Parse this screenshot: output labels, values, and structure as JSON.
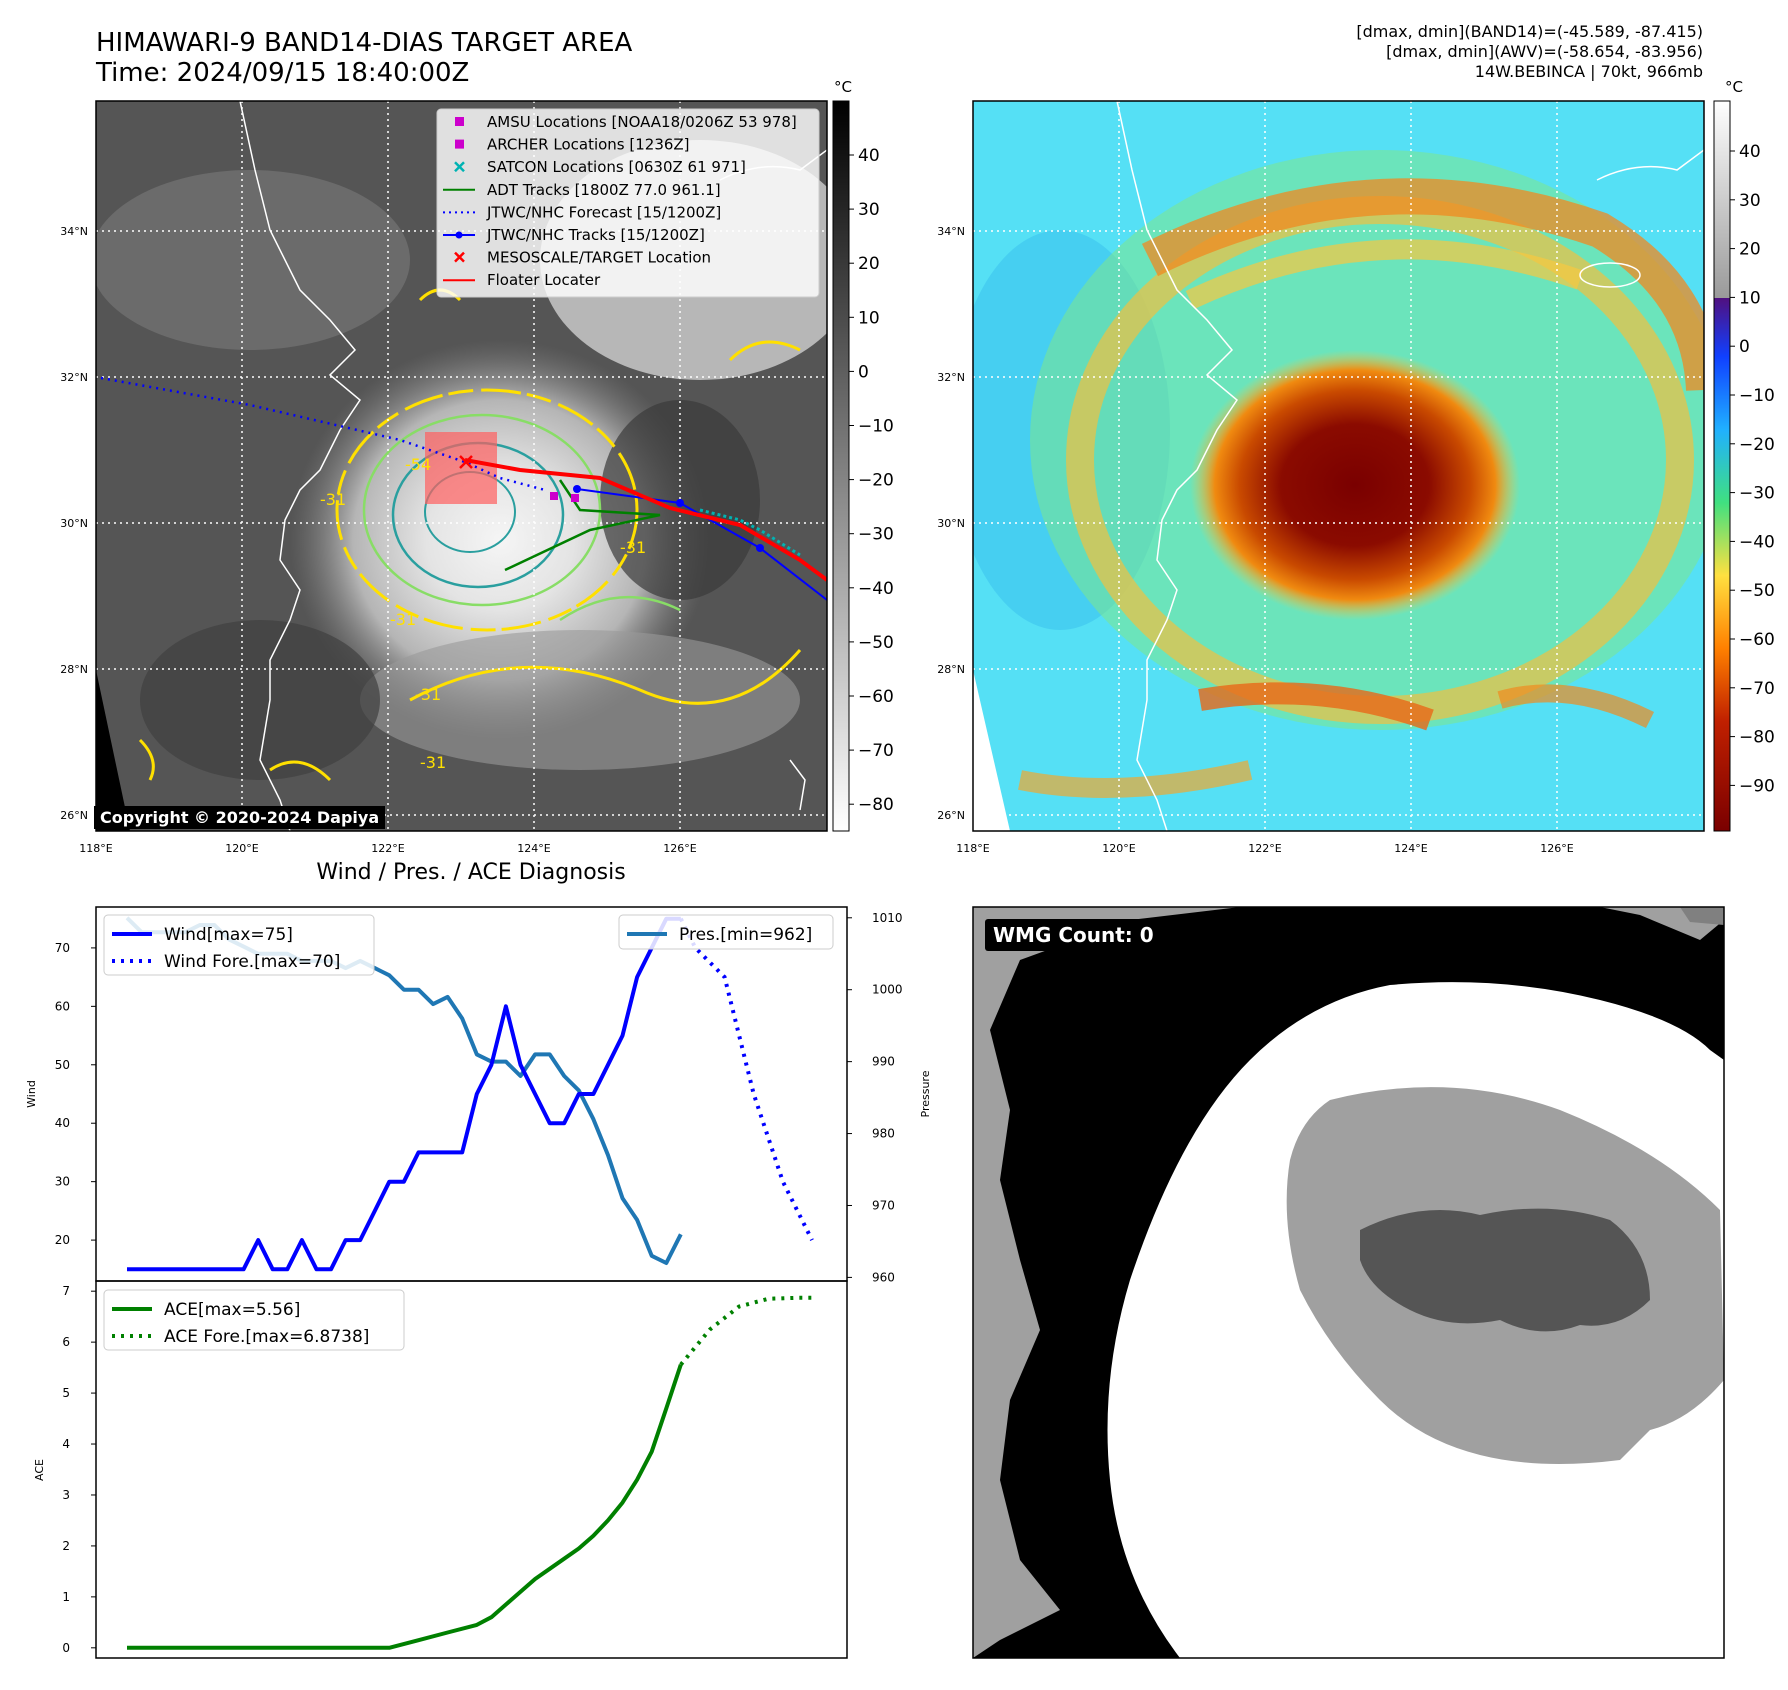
{
  "header": {
    "title_line1": "HIMAWARI-9 BAND14-DIAS TARGET AREA",
    "title_line2": "Time: 2024/09/15 18:40:00Z",
    "stats_line1": "[dmax, dmin](BAND14)=(-45.589, -87.415)",
    "stats_line2": "[dmax, dmin](AWV)=(-58.654, -83.956)",
    "stats_line3": "14W.BEBINCA | 70kt, 966mb"
  },
  "copyright": "Copyright © 2020-2024 Dapiya",
  "diag_title": "Wind / Pres. / ACE Diagnosis",
  "wmg_label": "WMG Count: 0",
  "colors": {
    "wind": "#0000ff",
    "pres": "#1f77b4",
    "ace": "#008000",
    "track_red": "#ff0000",
    "adt_green": "#008000",
    "amsu": "#cc00cc",
    "satcon": "#00b3b3",
    "contour_yellow": "#ffe000",
    "contour_green": "#88dd66",
    "contour_teal": "#2a9f9f"
  },
  "maps": {
    "lon_ticks": [
      "118°E",
      "120°E",
      "122°E",
      "124°E",
      "126°E"
    ],
    "lat_ticks": [
      "26°N",
      "28°N",
      "30°N",
      "32°N",
      "34°N"
    ],
    "contour_labels": [
      "-31",
      "-54",
      "-31",
      "-31",
      "-31",
      "-31"
    ],
    "left_cbar": {
      "unit": "°C",
      "ticks": [
        "40",
        "30",
        "20",
        "10",
        "0",
        "−10",
        "−20",
        "−30",
        "−40",
        "−50",
        "−60",
        "−70",
        "−80"
      ]
    },
    "right_cbar": {
      "unit": "°C",
      "ticks": [
        "40",
        "30",
        "20",
        "10",
        "0",
        "−10",
        "−20",
        "−30",
        "−40",
        "−50",
        "−60",
        "−70",
        "−80",
        "−90"
      ]
    },
    "legend": [
      {
        "label": "AMSU Locations [NOAA18/0206Z 53 978]",
        "kind": "square",
        "color": "#cc00cc"
      },
      {
        "label": "ARCHER Locations [1236Z]",
        "kind": "square",
        "color": "#cc00cc"
      },
      {
        "label": "SATCON Locations [0630Z 61 971]",
        "kind": "x",
        "color": "#00b3b3"
      },
      {
        "label": "ADT Tracks [1800Z 77.0 961.1]",
        "kind": "line",
        "color": "#008000"
      },
      {
        "label": "JTWC/NHC Forecast [15/1200Z]",
        "kind": "dotted",
        "color": "#0000ff"
      },
      {
        "label": "JTWC/NHC Tracks [15/1200Z]",
        "kind": "linedot",
        "color": "#0000ff"
      },
      {
        "label": "MESOSCALE/TARGET Location",
        "kind": "x",
        "color": "#ff0000"
      },
      {
        "label": "Floater Locater",
        "kind": "line",
        "color": "#ff0000"
      }
    ]
  },
  "chart_data": [
    {
      "type": "line",
      "title": "Wind / Pres. / ACE Diagnosis",
      "ylabel": "Wind",
      "ylim": [
        13,
        77
      ],
      "yticks": [
        20,
        30,
        40,
        50,
        60,
        70
      ],
      "y2label": "Pressure",
      "y2lim": [
        959.5,
        1011.5
      ],
      "y2ticks": [
        960,
        970,
        980,
        990,
        1000,
        1010
      ],
      "series": [
        {
          "name": "Wind[max=75]",
          "axis": "left",
          "style": "solid",
          "x": [
            0,
            1,
            2,
            3,
            4,
            5,
            6,
            7,
            8,
            9,
            10,
            11,
            12,
            13,
            14,
            15,
            16,
            17,
            18,
            19,
            20,
            21,
            22,
            23,
            24,
            25,
            26,
            27,
            28,
            29,
            30,
            31,
            32,
            33,
            34,
            35,
            36,
            37,
            38
          ],
          "values": [
            15,
            15,
            15,
            15,
            15,
            15,
            15,
            15,
            15,
            20,
            15,
            15,
            20,
            15,
            15,
            20,
            20,
            25,
            30,
            30,
            35,
            35,
            35,
            35,
            45,
            50,
            60,
            50,
            45,
            40,
            40,
            45,
            45,
            50,
            55,
            65,
            70,
            75,
            75
          ]
        },
        {
          "name": "Wind Fore.[max=70]",
          "axis": "left",
          "style": "dotted",
          "x": [
            38,
            39,
            41,
            43,
            45,
            47
          ],
          "values": [
            75,
            70,
            65,
            45,
            30,
            20
          ]
        },
        {
          "name": "Pres.[min=962]",
          "axis": "right",
          "style": "solid",
          "x": [
            0,
            1,
            2,
            3,
            4,
            5,
            6,
            7,
            8,
            9,
            10,
            11,
            12,
            13,
            14,
            15,
            16,
            17,
            18,
            19,
            20,
            21,
            22,
            23,
            24,
            25,
            26,
            27,
            28,
            29,
            30,
            31,
            32,
            33,
            34,
            35,
            36,
            37,
            38
          ],
          "values": [
            1010,
            1008,
            1008,
            1008,
            1008,
            1009,
            1009,
            1007,
            1006,
            1005,
            1005,
            1005,
            1004,
            1004,
            1004,
            1003,
            1004,
            1003,
            1002,
            1000,
            1000,
            998,
            999,
            996,
            991,
            990,
            990,
            988,
            991,
            991,
            988,
            986,
            982,
            977,
            971,
            968,
            963,
            962,
            966
          ]
        },
        {
          "name": "ACE[max=5.56]",
          "axis": "left",
          "style": "solid",
          "x": [
            0,
            2,
            4,
            6,
            8,
            10,
            12,
            14,
            16,
            18,
            20,
            22,
            24,
            25,
            26,
            27,
            28,
            29,
            30,
            31,
            32,
            33,
            34,
            35,
            36,
            37,
            38
          ],
          "values": [
            0,
            0,
            0,
            0,
            0,
            0,
            0,
            0,
            0,
            0,
            0.15,
            0.3,
            0.45,
            0.6,
            0.85,
            1.1,
            1.35,
            1.55,
            1.75,
            1.95,
            2.2,
            2.5,
            2.85,
            3.3,
            3.85,
            4.7,
            5.56
          ]
        },
        {
          "name": "ACE Fore.[max=6.8738]",
          "axis": "left",
          "style": "dotted",
          "x": [
            38,
            40,
            42,
            44,
            46,
            47
          ],
          "values": [
            5.56,
            6.25,
            6.7,
            6.85,
            6.87,
            6.87
          ]
        }
      ],
      "ace_ylabel": "ACE",
      "ace_ylim": [
        -0.2,
        7.2
      ],
      "ace_yticks": [
        0,
        1,
        2,
        3,
        4,
        5,
        6,
        7
      ]
    }
  ]
}
